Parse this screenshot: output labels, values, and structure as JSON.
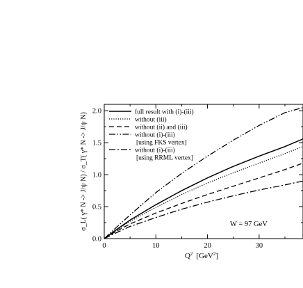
{
  "chart_data": {
    "type": "line",
    "xlabel": "Q",
    "xlabel_sup": "2",
    "xlabel_units": "[GeV",
    "xlabel_units_sup": "2",
    "xlabel_units_close": "]",
    "ylabel": "σ_L( γ* N -> J/ψ N) / σ_T( γ* N -> J/ψ N)",
    "xlim": [
      0,
      38.5
    ],
    "ylim": [
      0,
      2.1
    ],
    "x_ticks": [
      0,
      10,
      20,
      30
    ],
    "x_tick_labels": [
      "0",
      "10",
      "20",
      "30"
    ],
    "y_ticks": [
      0.0,
      0.5,
      1.0,
      1.5,
      2.0
    ],
    "y_tick_labels": [
      "0.0",
      "0.5",
      "1.0",
      "1.5",
      "2.0"
    ],
    "annotation": "W = 97 GeV",
    "legend_position": "top-left",
    "legend": [
      [
        "full result with (i)-(iii)"
      ],
      [
        "without (iii)"
      ],
      [
        "without (ii) and (iii)"
      ],
      [
        "without (i)-(iii)",
        "[using FKS vertex]"
      ],
      [
        "without (i)-(iii)",
        "[using RRML vertex]"
      ]
    ],
    "series": [
      {
        "name": "full result with (i)-(iii)",
        "style": "solid",
        "x": [
          0,
          2,
          5,
          10,
          15,
          20,
          25,
          30,
          35,
          38.5
        ],
        "values": [
          0,
          0.12,
          0.29,
          0.53,
          0.75,
          0.95,
          1.13,
          1.29,
          1.44,
          1.56
        ]
      },
      {
        "name": "without (iii)",
        "style": "dotted",
        "x": [
          0,
          2,
          5,
          10,
          15,
          20,
          25,
          30,
          35,
          38.5
        ],
        "values": [
          0,
          0.11,
          0.27,
          0.49,
          0.69,
          0.87,
          1.03,
          1.18,
          1.33,
          1.44
        ]
      },
      {
        "name": "without (ii) and (iii)",
        "style": "dashed",
        "x": [
          0,
          2,
          5,
          10,
          15,
          20,
          25,
          30,
          35,
          38.5
        ],
        "values": [
          0,
          0.1,
          0.23,
          0.4,
          0.55,
          0.69,
          0.82,
          0.95,
          1.08,
          1.18
        ]
      },
      {
        "name": "without (i)-(iii) [using FKS vertex]",
        "style": "dash-dot-dot",
        "x": [
          0,
          2,
          5,
          10,
          15,
          20,
          25,
          30,
          35,
          38.5
        ],
        "values": [
          0,
          0.15,
          0.37,
          0.72,
          1.02,
          1.29,
          1.54,
          1.77,
          1.97,
          2.05
        ]
      },
      {
        "name": "without (i)-(iii) [using RRML vertex]",
        "style": "dash-dot",
        "x": [
          0,
          2,
          5,
          10,
          15,
          20,
          25,
          30,
          35,
          38.5
        ],
        "values": [
          0,
          0.08,
          0.19,
          0.33,
          0.46,
          0.57,
          0.67,
          0.76,
          0.84,
          0.9
        ]
      }
    ]
  }
}
